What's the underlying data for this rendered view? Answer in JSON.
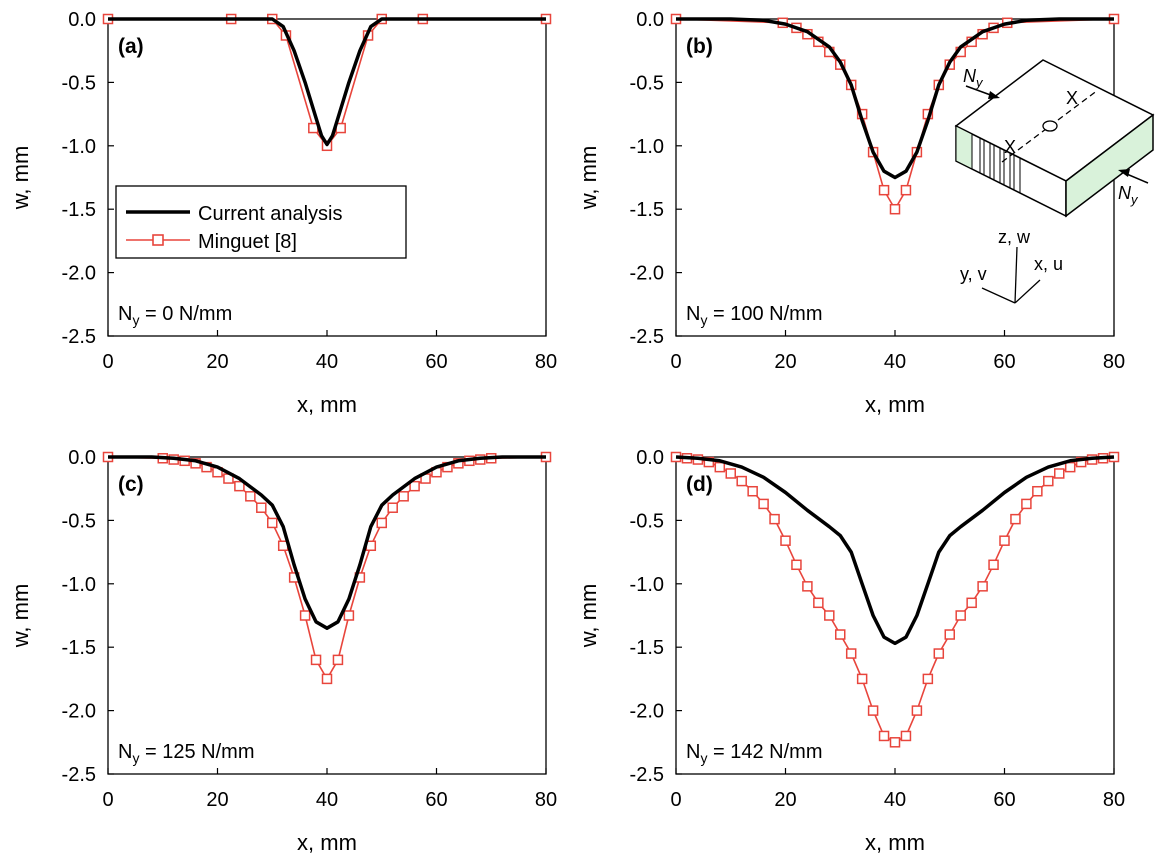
{
  "colors": {
    "current": "#000000",
    "minguet": "#e8453c",
    "marker_fill": "#ffffff",
    "face_green": "#d9f2da"
  },
  "legend": {
    "current_label": "Current analysis",
    "minguet_label": "Minguet [8]"
  },
  "inset": {
    "ny_label": "N",
    "ny_sub": "y",
    "x_label": "X",
    "z_axis": "z, w",
    "y_axis": "y, v",
    "x_axis": "x, u"
  },
  "chart_data": [
    {
      "type": "line",
      "panel_label": "(a)",
      "note": "N",
      "note_sub": "y",
      "note_rest": " = 0 N/mm",
      "xlabel": "x, mm",
      "ylabel": "w, mm",
      "xlim": [
        0,
        80
      ],
      "ylim": [
        -2.5,
        0.0
      ],
      "xticks": [
        "0",
        "20",
        "40",
        "60",
        "80"
      ],
      "yticks": [
        "0.0",
        "-0.5",
        "-1.0",
        "-1.5",
        "-2.0",
        "-2.5"
      ],
      "series": [
        {
          "name": "Current analysis",
          "x": [
            0,
            30,
            32,
            34,
            36,
            38,
            39,
            40,
            41,
            42,
            44,
            46,
            48,
            50,
            80
          ],
          "y": [
            0,
            0,
            -0.06,
            -0.25,
            -0.5,
            -0.78,
            -0.92,
            -0.99,
            -0.92,
            -0.78,
            -0.5,
            -0.25,
            -0.06,
            0,
            0
          ]
        },
        {
          "name": "Minguet [8]",
          "x": [
            0,
            22.5,
            30,
            32.5,
            37.5,
            40,
            42.5,
            47.5,
            50,
            57.5,
            80
          ],
          "y": [
            0,
            0,
            0,
            -0.13,
            -0.86,
            -1.0,
            -0.86,
            -0.13,
            0,
            0,
            0
          ]
        }
      ]
    },
    {
      "type": "line",
      "panel_label": "(b)",
      "note": "N",
      "note_sub": "y",
      "note_rest": " = 100 N/mm",
      "xlabel": "x, mm",
      "ylabel": "w, mm",
      "xlim": [
        0,
        80
      ],
      "ylim": [
        -2.5,
        0.0
      ],
      "xticks": [
        "0",
        "20",
        "40",
        "60",
        "80"
      ],
      "yticks": [
        "0.0",
        "-0.5",
        "-1.0",
        "-1.5",
        "-2.0",
        "-2.5"
      ],
      "series": [
        {
          "name": "Current analysis",
          "x": [
            0,
            10,
            16,
            20,
            24,
            28,
            30,
            32,
            34,
            36,
            38,
            40,
            42,
            44,
            46,
            48,
            50,
            52,
            56,
            60,
            64,
            70,
            80
          ],
          "y": [
            0,
            0,
            -0.01,
            -0.04,
            -0.1,
            -0.22,
            -0.34,
            -0.52,
            -0.8,
            -1.05,
            -1.2,
            -1.25,
            -1.2,
            -1.05,
            -0.8,
            -0.52,
            -0.34,
            -0.22,
            -0.1,
            -0.04,
            -0.01,
            0,
            0
          ]
        },
        {
          "name": "Minguet [8]",
          "x": [
            0,
            19.5,
            22,
            24,
            26,
            28,
            30,
            32,
            34,
            36,
            38,
            40,
            42,
            44,
            46,
            48,
            50,
            52,
            54,
            56,
            58,
            60.5,
            80
          ],
          "y": [
            0,
            -0.03,
            -0.07,
            -0.12,
            -0.18,
            -0.26,
            -0.36,
            -0.52,
            -0.75,
            -1.05,
            -1.35,
            -1.5,
            -1.35,
            -1.05,
            -0.75,
            -0.52,
            -0.36,
            -0.26,
            -0.18,
            -0.12,
            -0.07,
            -0.03,
            0
          ]
        }
      ]
    },
    {
      "type": "line",
      "panel_label": "(c)",
      "note": "N",
      "note_sub": "y",
      "note_rest": " = 125 N/mm",
      "xlabel": "x, mm",
      "ylabel": "w, mm",
      "xlim": [
        0,
        80
      ],
      "ylim": [
        -2.5,
        0.0
      ],
      "xticks": [
        "0",
        "20",
        "40",
        "60",
        "80"
      ],
      "yticks": [
        "0.0",
        "-0.5",
        "-1.0",
        "-1.5",
        "-2.0",
        "-2.5"
      ],
      "series": [
        {
          "name": "Current analysis",
          "x": [
            0,
            8,
            12,
            16,
            20,
            24,
            28,
            30,
            32,
            34,
            36,
            38,
            40,
            42,
            44,
            46,
            48,
            50,
            52,
            56,
            60,
            64,
            68,
            72,
            80
          ],
          "y": [
            0,
            0,
            -0.01,
            -0.03,
            -0.08,
            -0.17,
            -0.3,
            -0.38,
            -0.55,
            -0.85,
            -1.12,
            -1.3,
            -1.35,
            -1.3,
            -1.12,
            -0.85,
            -0.55,
            -0.38,
            -0.3,
            -0.17,
            -0.08,
            -0.03,
            -0.01,
            0,
            0
          ]
        },
        {
          "name": "Minguet [8]",
          "x": [
            0,
            10,
            12,
            14,
            16,
            18,
            20,
            22,
            24,
            26,
            28,
            30,
            32,
            34,
            36,
            38,
            40,
            42,
            44,
            46,
            48,
            50,
            52,
            54,
            56,
            58,
            60,
            62,
            64,
            66,
            68,
            70,
            80
          ],
          "y": [
            0,
            -0.01,
            -0.02,
            -0.03,
            -0.05,
            -0.08,
            -0.12,
            -0.17,
            -0.23,
            -0.31,
            -0.4,
            -0.52,
            -0.7,
            -0.95,
            -1.25,
            -1.6,
            -1.75,
            -1.6,
            -1.25,
            -0.95,
            -0.7,
            -0.52,
            -0.4,
            -0.31,
            -0.23,
            -0.17,
            -0.12,
            -0.08,
            -0.05,
            -0.03,
            -0.02,
            -0.01,
            0
          ]
        }
      ]
    },
    {
      "type": "line",
      "panel_label": "(d)",
      "note": "N",
      "note_sub": "y",
      "note_rest": " = 142 N/mm",
      "xlabel": "x, mm",
      "ylabel": "w, mm",
      "xlim": [
        0,
        80
      ],
      "ylim": [
        -2.5,
        0.0
      ],
      "xticks": [
        "0",
        "20",
        "40",
        "60",
        "80"
      ],
      "yticks": [
        "0.0",
        "-0.5",
        "-1.0",
        "-1.5",
        "-2.0",
        "-2.5"
      ],
      "series": [
        {
          "name": "Current analysis",
          "x": [
            0,
            4,
            8,
            12,
            16,
            20,
            24,
            28,
            30,
            32,
            34,
            36,
            38,
            40,
            42,
            44,
            46,
            48,
            50,
            52,
            56,
            60,
            64,
            68,
            72,
            76,
            80
          ],
          "y": [
            0,
            -0.01,
            -0.03,
            -0.08,
            -0.16,
            -0.28,
            -0.42,
            -0.55,
            -0.62,
            -0.75,
            -1.0,
            -1.25,
            -1.42,
            -1.47,
            -1.42,
            -1.25,
            -1.0,
            -0.75,
            -0.62,
            -0.55,
            -0.42,
            -0.28,
            -0.16,
            -0.08,
            -0.03,
            -0.01,
            0
          ]
        },
        {
          "name": "Minguet [8]",
          "x": [
            0,
            2,
            4,
            6,
            8,
            10,
            12,
            14,
            16,
            18,
            20,
            22,
            24,
            26,
            28,
            30,
            32,
            34,
            36,
            38,
            40,
            42,
            44,
            46,
            48,
            50,
            52,
            54,
            56,
            58,
            60,
            62,
            64,
            66,
            68,
            70,
            72,
            74,
            76,
            78,
            80
          ],
          "y": [
            0,
            -0.01,
            -0.02,
            -0.04,
            -0.08,
            -0.13,
            -0.19,
            -0.27,
            -0.37,
            -0.49,
            -0.66,
            -0.85,
            -1.02,
            -1.15,
            -1.25,
            -1.4,
            -1.55,
            -1.75,
            -2.0,
            -2.2,
            -2.25,
            -2.2,
            -2.0,
            -1.75,
            -1.55,
            -1.4,
            -1.25,
            -1.15,
            -1.02,
            -0.85,
            -0.66,
            -0.49,
            -0.37,
            -0.27,
            -0.19,
            -0.13,
            -0.08,
            -0.04,
            -0.02,
            -0.01,
            0
          ]
        }
      ]
    }
  ]
}
